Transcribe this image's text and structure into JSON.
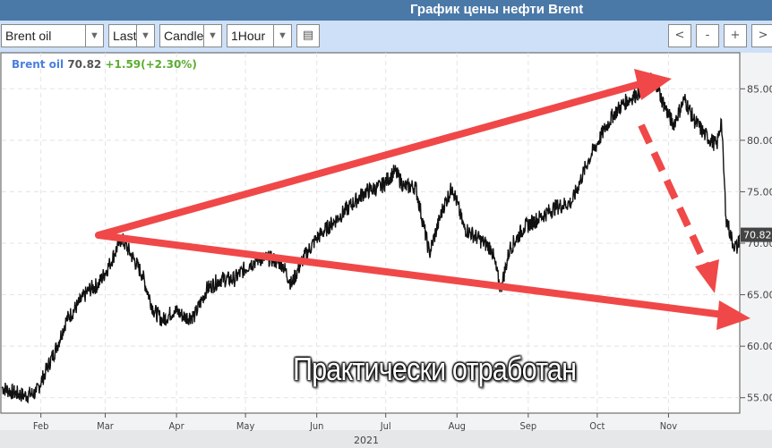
{
  "window": {
    "title": "График цены нефти Brent"
  },
  "toolbar": {
    "instrument": "Brent oil",
    "price_type": "Last",
    "chart_type": "Candle",
    "interval": "1Hour",
    "buttons": [
      "<",
      "-",
      "+",
      ">"
    ]
  },
  "legend": {
    "name": "Brent oil",
    "price": "70.82",
    "change": "+1.59(+2.30%)",
    "name_color": "#4a7fe0",
    "change_color": "#5aad2e"
  },
  "annotation": {
    "text": "Практически отработан",
    "arrow_color": "#f04848"
  },
  "chart_data": {
    "type": "line",
    "title": "",
    "xlabel": "2021",
    "ylabel": "",
    "x_ticks": [
      "Feb",
      "Mar",
      "Apr",
      "May",
      "Jun",
      "Jul",
      "Aug",
      "Sep",
      "Oct",
      "Nov"
    ],
    "x_tick_dates": [
      "2021-02-01",
      "2021-03-01",
      "2021-04-01",
      "2021-05-01",
      "2021-06-01",
      "2021-07-01",
      "2021-08-01",
      "2021-09-01",
      "2021-10-01",
      "2021-11-01"
    ],
    "xlim": [
      "2021-01-15",
      "2021-12-02"
    ],
    "y_ticks": [
      "55.00",
      "60.00",
      "65.00",
      "70.00",
      "75.00",
      "80.00",
      "85.00"
    ],
    "ylim": [
      53.5,
      88.5
    ],
    "grid": true,
    "last_price_label": "70.82",
    "series": [
      {
        "points": [
          [
            "2021-01-15",
            56.0
          ],
          [
            "2021-01-20",
            55.5
          ],
          [
            "2021-01-25",
            55.2
          ],
          [
            "2021-01-30",
            55.5
          ],
          [
            "2021-02-03",
            57.5
          ],
          [
            "2021-02-08",
            60.0
          ],
          [
            "2021-02-12",
            62.5
          ],
          [
            "2021-02-17",
            64.0
          ],
          [
            "2021-02-22",
            65.5
          ],
          [
            "2021-02-26",
            66.0
          ],
          [
            "2021-03-03",
            68.0
          ],
          [
            "2021-03-08",
            70.5
          ],
          [
            "2021-03-12",
            69.0
          ],
          [
            "2021-03-17",
            67.0
          ],
          [
            "2021-03-22",
            63.5
          ],
          [
            "2021-03-26",
            62.5
          ],
          [
            "2021-03-31",
            63.5
          ],
          [
            "2021-04-05",
            62.8
          ],
          [
            "2021-04-09",
            63.0
          ],
          [
            "2021-04-14",
            65.5
          ],
          [
            "2021-04-20",
            66.5
          ],
          [
            "2021-04-26",
            66.5
          ],
          [
            "2021-05-03",
            68.0
          ],
          [
            "2021-05-07",
            68.5
          ],
          [
            "2021-05-12",
            68.5
          ],
          [
            "2021-05-17",
            68.0
          ],
          [
            "2021-05-21",
            66.0
          ],
          [
            "2021-05-26",
            68.5
          ],
          [
            "2021-06-01",
            70.5
          ],
          [
            "2021-06-08",
            72.0
          ],
          [
            "2021-06-15",
            73.5
          ],
          [
            "2021-06-22",
            75.0
          ],
          [
            "2021-06-29",
            75.5
          ],
          [
            "2021-07-05",
            77.0
          ],
          [
            "2021-07-09",
            75.5
          ],
          [
            "2021-07-14",
            75.5
          ],
          [
            "2021-07-20",
            69.0
          ],
          [
            "2021-07-26",
            73.5
          ],
          [
            "2021-07-30",
            75.5
          ],
          [
            "2021-08-04",
            71.5
          ],
          [
            "2021-08-10",
            70.5
          ],
          [
            "2021-08-16",
            69.5
          ],
          [
            "2021-08-20",
            65.5
          ],
          [
            "2021-08-24",
            69.5
          ],
          [
            "2021-08-30",
            71.5
          ],
          [
            "2021-09-06",
            72.5
          ],
          [
            "2021-09-13",
            73.5
          ],
          [
            "2021-09-20",
            74.0
          ],
          [
            "2021-09-27",
            78.0
          ],
          [
            "2021-10-04",
            81.0
          ],
          [
            "2021-10-08",
            82.5
          ],
          [
            "2021-10-12",
            83.5
          ],
          [
            "2021-10-18",
            84.5
          ],
          [
            "2021-10-22",
            85.5
          ],
          [
            "2021-10-26",
            86.0
          ],
          [
            "2021-10-29",
            84.0
          ],
          [
            "2021-11-03",
            81.5
          ],
          [
            "2021-11-08",
            84.0
          ],
          [
            "2021-11-12",
            82.0
          ],
          [
            "2021-11-17",
            80.5
          ],
          [
            "2021-11-22",
            79.5
          ],
          [
            "2021-11-24",
            82.0
          ],
          [
            "2021-11-26",
            72.5
          ],
          [
            "2021-11-29",
            70.0
          ],
          [
            "2021-12-01",
            69.5
          ],
          [
            "2021-12-02",
            70.82
          ]
        ]
      }
    ]
  }
}
